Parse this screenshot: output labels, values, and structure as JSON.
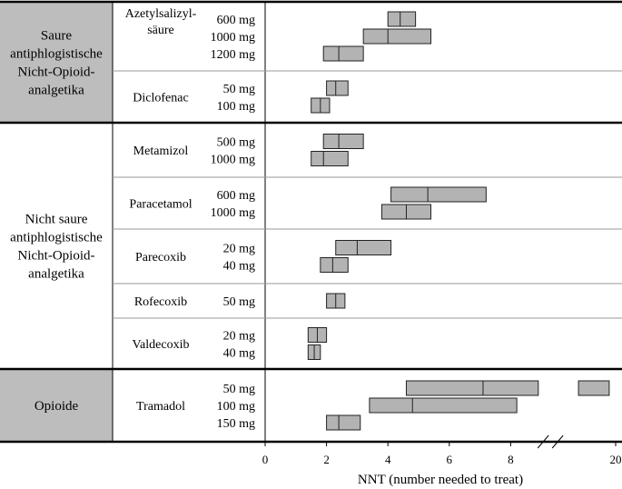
{
  "chart_data": {
    "type": "range-bar",
    "xlabel": "NNT (number needed to treat)",
    "x_ticks": [
      0,
      2,
      4,
      6,
      8,
      20
    ],
    "axis_break": "between 8 and 20",
    "groups": [
      {
        "label_lines": [
          "Saure",
          "antiphlogistische",
          "Nicht-Opioid-",
          "analgetika"
        ],
        "shaded": true,
        "drugs": [
          {
            "name_lines": [
              "Azetylsalizyl-",
              "säure"
            ],
            "doses": [
              {
                "dose": "600 mg",
                "low": 4.0,
                "median": 4.4,
                "high": 4.9
              },
              {
                "dose": "1000 mg",
                "low": 3.2,
                "median": 4.0,
                "high": 5.4
              },
              {
                "dose": "1200 mg",
                "low": 1.9,
                "median": 2.4,
                "high": 3.2
              }
            ]
          },
          {
            "name_lines": [
              "Diclofenac"
            ],
            "doses": [
              {
                "dose": "50 mg",
                "low": 2.0,
                "median": 2.3,
                "high": 2.7
              },
              {
                "dose": "100 mg",
                "low": 1.5,
                "median": 1.8,
                "high": 2.1
              }
            ]
          }
        ]
      },
      {
        "label_lines": [
          "Nicht saure",
          "antiphlogistische",
          "Nicht-Opioid-",
          "analgetika"
        ],
        "shaded": false,
        "drugs": [
          {
            "name_lines": [
              "Metamizol"
            ],
            "doses": [
              {
                "dose": "500 mg",
                "low": 1.9,
                "median": 2.4,
                "high": 3.2
              },
              {
                "dose": "1000 mg",
                "low": 1.5,
                "median": 1.9,
                "high": 2.7
              }
            ]
          },
          {
            "name_lines": [
              "Paracetamol"
            ],
            "doses": [
              {
                "dose": "600 mg",
                "low": 4.1,
                "median": 5.3,
                "high": 7.2
              },
              {
                "dose": "1000 mg",
                "low": 3.8,
                "median": 4.6,
                "high": 5.4
              }
            ]
          },
          {
            "name_lines": [
              "Parecoxib"
            ],
            "doses": [
              {
                "dose": "20 mg",
                "low": 2.3,
                "median": 3.0,
                "high": 4.1
              },
              {
                "dose": "40 mg",
                "low": 1.8,
                "median": 2.2,
                "high": 2.7
              }
            ]
          },
          {
            "name_lines": [
              "Rofecoxib"
            ],
            "doses": [
              {
                "dose": "50 mg",
                "low": 2.0,
                "median": 2.3,
                "high": 2.6
              }
            ]
          },
          {
            "name_lines": [
              "Valdecoxib"
            ],
            "doses": [
              {
                "dose": "20 mg",
                "low": 1.4,
                "median": 1.7,
                "high": 2.0
              },
              {
                "dose": "40 mg",
                "low": 1.4,
                "median": 1.6,
                "high": 1.8
              }
            ]
          }
        ]
      },
      {
        "label_lines": [
          "Opioide"
        ],
        "shaded": true,
        "drugs": [
          {
            "name_lines": [
              "Tramadol"
            ],
            "doses": [
              {
                "dose": "50 mg",
                "low": 4.6,
                "median": 7.1,
                "high": 8.9,
                "extra": {
                  "low": 9.5,
                  "high": 10.5
                }
              },
              {
                "dose": "100 mg",
                "low": 3.4,
                "median": 4.8,
                "high": 8.2
              },
              {
                "dose": "150 mg",
                "low": 2.0,
                "median": 2.4,
                "high": 3.1
              }
            ]
          }
        ]
      }
    ]
  }
}
